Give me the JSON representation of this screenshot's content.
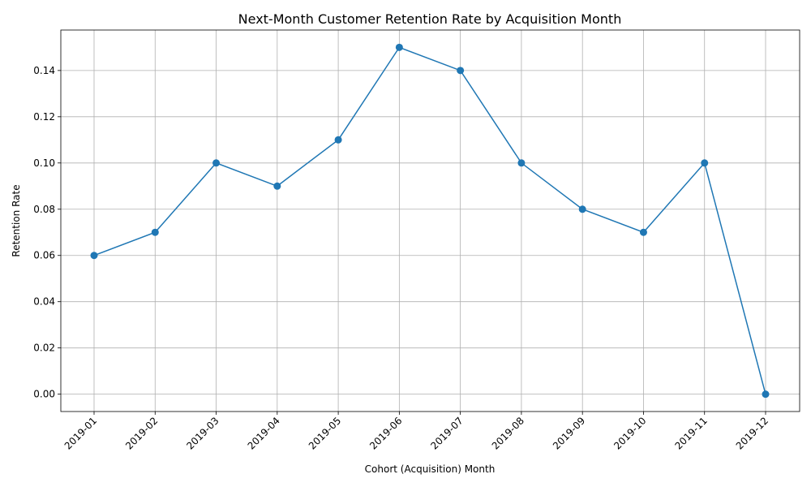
{
  "chart_data": {
    "type": "line",
    "title": "Next-Month Customer Retention Rate by Acquisition Month",
    "xlabel": "Cohort (Acquisition) Month",
    "ylabel": "Retention Rate",
    "categories": [
      "2019-01",
      "2019-02",
      "2019-03",
      "2019-04",
      "2019-05",
      "2019-06",
      "2019-07",
      "2019-08",
      "2019-09",
      "2019-10",
      "2019-11",
      "2019-12"
    ],
    "series": [
      {
        "values": [
          0.06,
          0.07,
          0.1,
          0.09,
          0.11,
          0.15,
          0.14,
          0.1,
          0.08,
          0.07,
          0.1,
          0.0
        ],
        "color": "#1f77b4",
        "marker": "circle"
      }
    ],
    "ylim": [
      -0.0075,
      0.1575
    ],
    "yticks": [
      "0.00",
      "0.02",
      "0.04",
      "0.06",
      "0.08",
      "0.10",
      "0.12",
      "0.14"
    ],
    "grid": true,
    "xtick_rotation": 45
  }
}
